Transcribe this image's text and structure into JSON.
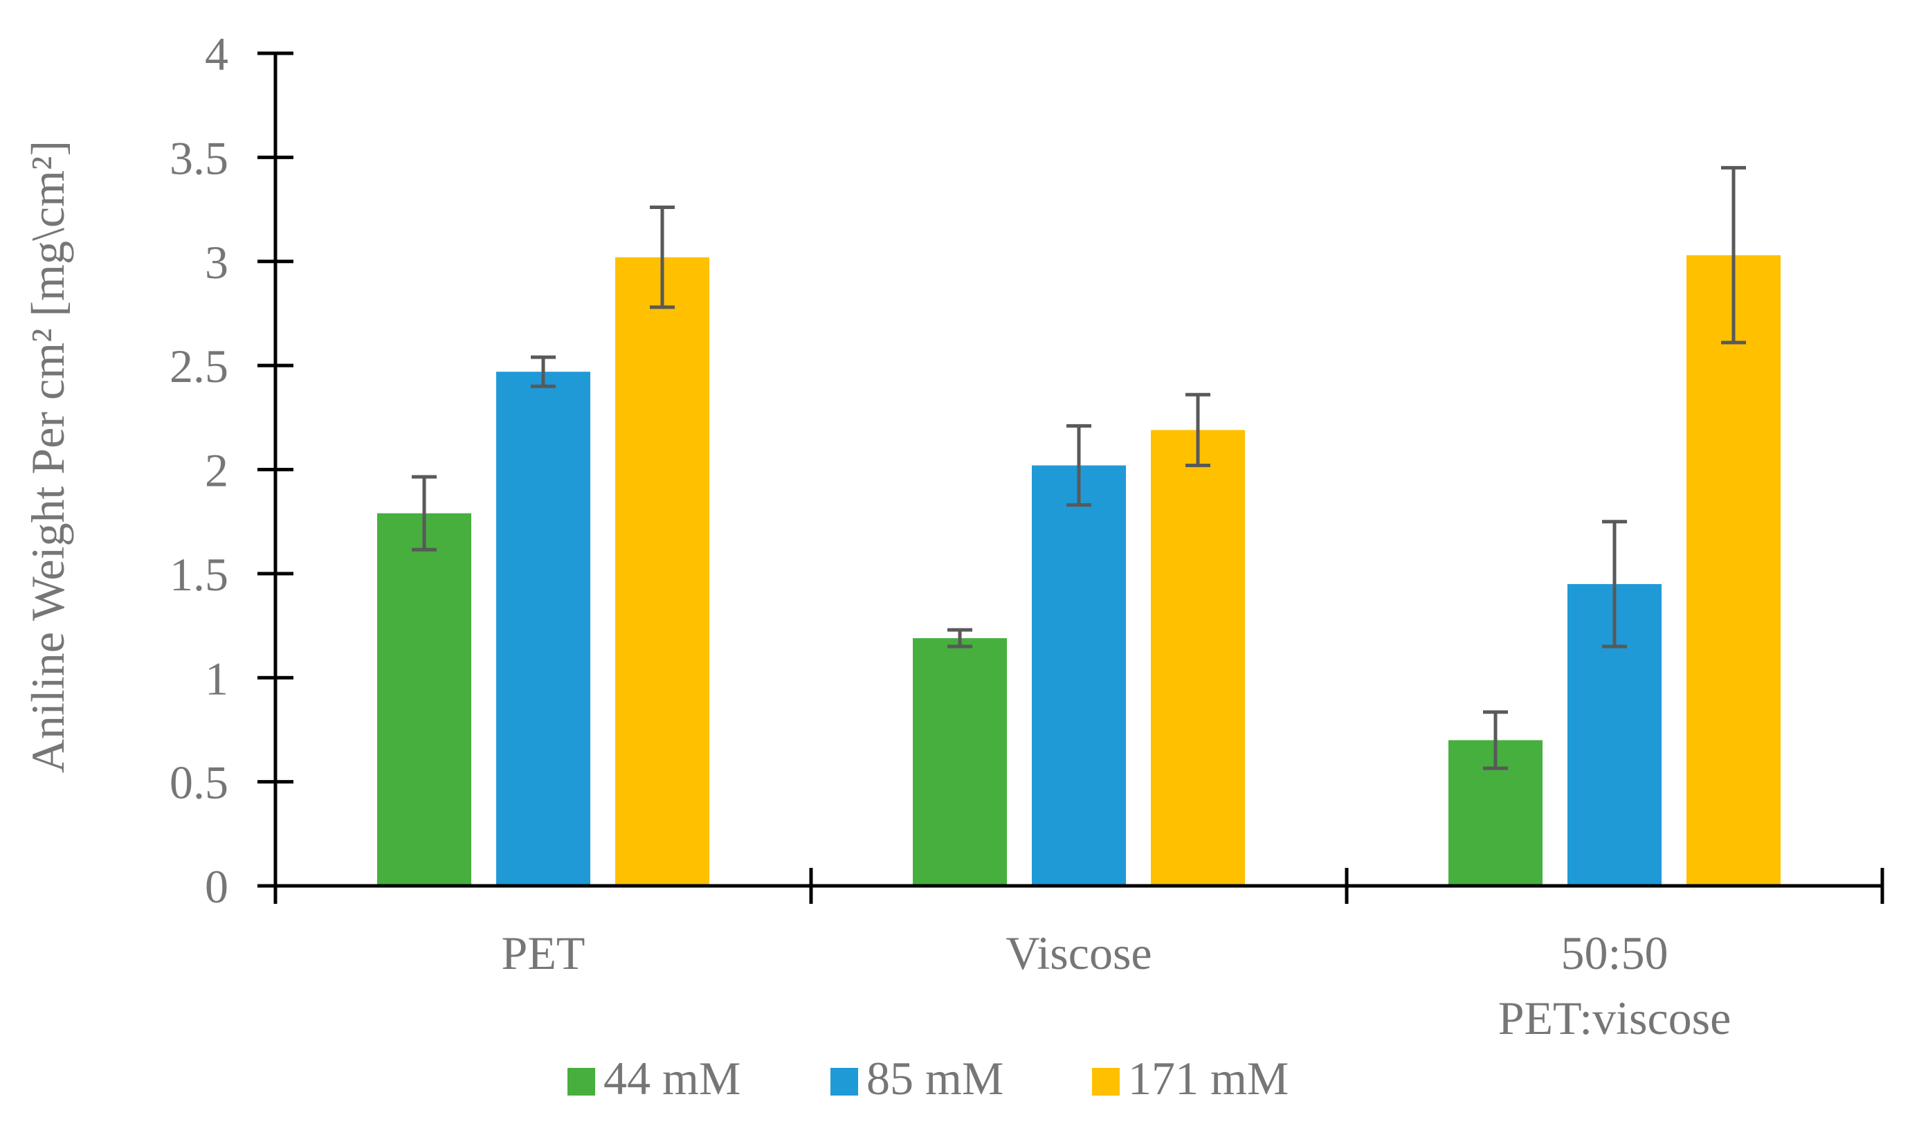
{
  "chart_data": {
    "type": "bar",
    "title": "",
    "xlabel": "",
    "ylabel": "Aniline Weight Per cm² [mg\\cm²]",
    "ylim": [
      0,
      4
    ],
    "y_ticks": [
      "0",
      "0.5",
      "1",
      "1.5",
      "2",
      "2.5",
      "3",
      "3.5",
      "4"
    ],
    "y_tick_values": [
      0,
      0.5,
      1,
      1.5,
      2,
      2.5,
      3,
      3.5,
      4
    ],
    "categories": [
      {
        "lines": [
          "PET"
        ]
      },
      {
        "lines": [
          "Viscose"
        ]
      },
      {
        "lines": [
          "50:50",
          "PET:viscose"
        ]
      }
    ],
    "series": [
      {
        "name": "44 mM",
        "color": "#46AF3E",
        "values": [
          1.79,
          1.19,
          0.7
        ],
        "errors": [
          0.175,
          0.04,
          0.135
        ]
      },
      {
        "name": "85 mM",
        "color": "#1F9AD7",
        "values": [
          2.47,
          2.02,
          1.45
        ],
        "errors": [
          0.07,
          0.19,
          0.3
        ]
      },
      {
        "name": "171 mM",
        "color": "#FFC000",
        "values": [
          3.02,
          2.19,
          3.03
        ],
        "errors": [
          0.24,
          0.17,
          0.42
        ]
      }
    ],
    "error_bar_color": "#595959",
    "axis_color": "#000000",
    "grid": false,
    "legend_position": "bottom"
  }
}
